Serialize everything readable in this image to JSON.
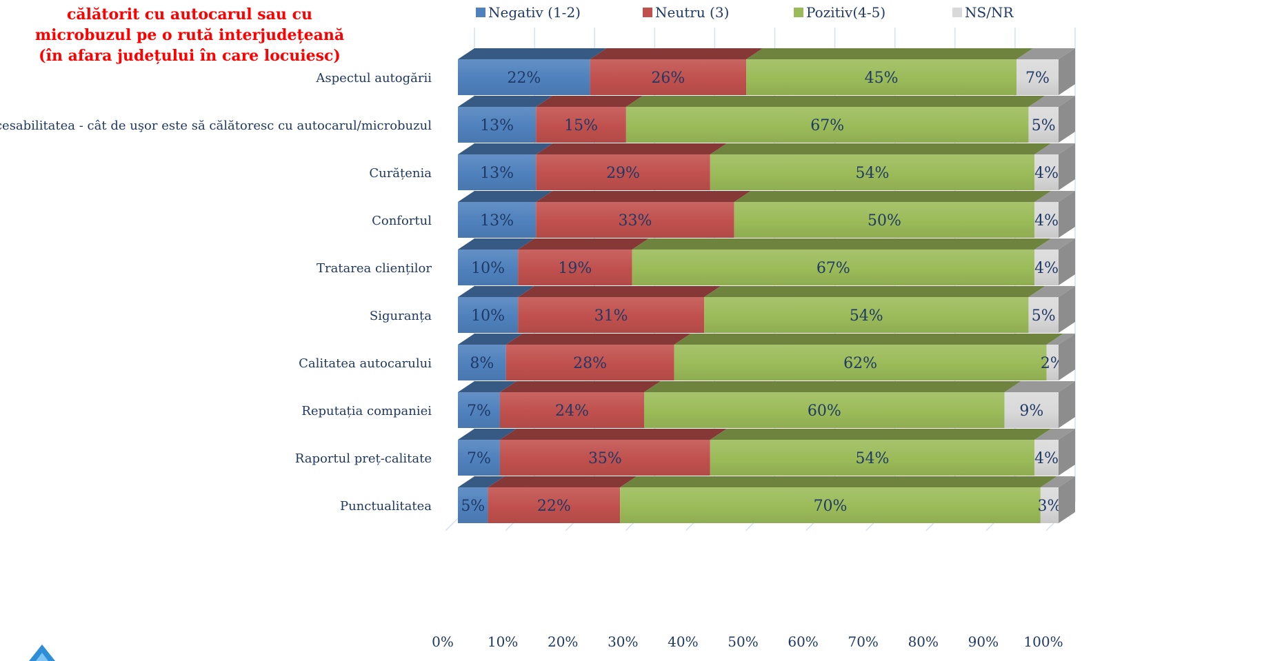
{
  "title_lines": [
    "călătorit cu autocarul sau cu",
    "microbuzul pe o rută interjudețeană",
    "(în afara județului în care locuiesc)"
  ],
  "colors": {
    "negativ": "#4f81bd",
    "neutru": "#c0504d",
    "pozitiv": "#9bbb59",
    "nsnr": "#d9d9d9",
    "title": "#ff0000",
    "text": "#1f3864"
  },
  "chart_data": {
    "type": "bar",
    "orientation": "horizontal",
    "stacked": "100%",
    "three_d": true,
    "legend_position": "top",
    "grid": true,
    "xlim": [
      0,
      100
    ],
    "x_ticks": [
      "0%",
      "10%",
      "20%",
      "30%",
      "40%",
      "50%",
      "60%",
      "70%",
      "80%",
      "90%",
      "100%"
    ],
    "categories": [
      "Aspectul autogării",
      "Accesabilitatea - cât de uşor este să călătoresc cu autocarul/microbuzul",
      "Curățenia",
      "Confortul",
      "Tratarea clienților",
      "Siguranța",
      "Calitatea autocarului",
      "Reputația companiei",
      "Raportul preț-calitate",
      "Punctualitatea"
    ],
    "series": [
      {
        "name": "Negativ (1-2)",
        "values": [
          22,
          13,
          13,
          13,
          10,
          10,
          8,
          7,
          7,
          5
        ]
      },
      {
        "name": "Neutru (3)",
        "values": [
          26,
          15,
          29,
          33,
          19,
          31,
          28,
          24,
          35,
          22
        ]
      },
      {
        "name": "Pozitiv(4-5)",
        "values": [
          45,
          67,
          54,
          50,
          67,
          54,
          62,
          60,
          54,
          70
        ]
      },
      {
        "name": "NS/NR",
        "values": [
          7,
          5,
          4,
          4,
          4,
          5,
          2,
          9,
          4,
          3
        ]
      }
    ]
  }
}
